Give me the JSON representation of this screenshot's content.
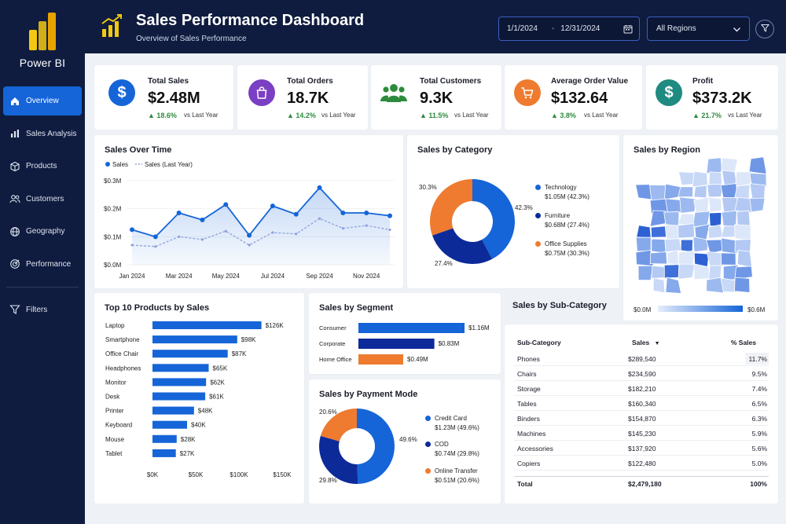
{
  "app": {
    "brand": "Power BI"
  },
  "sidebar": {
    "items": [
      {
        "label": "Overview",
        "icon": "home-icon",
        "active": true
      },
      {
        "label": "Sales Analysis",
        "icon": "bar-chart-icon"
      },
      {
        "label": "Products",
        "icon": "box-icon"
      },
      {
        "label": "Customers",
        "icon": "users-icon"
      },
      {
        "label": "Geography",
        "icon": "globe-icon"
      },
      {
        "label": "Performance",
        "icon": "target-icon"
      }
    ],
    "filters_label": "Filters"
  },
  "header": {
    "title": "Sales Performance Dashboard",
    "subtitle": "Overview of Sales Performance",
    "date_start": "1/1/2024",
    "date_separator": "-",
    "date_end": "12/31/2024",
    "region_selected": "All Regions"
  },
  "kpis": [
    {
      "label": "Total Sales",
      "value": "$2.48M",
      "change": "▲ 18.6%",
      "vs": "vs Last Year",
      "color": "#1565d8",
      "icon": "dollar-icon"
    },
    {
      "label": "Total Orders",
      "value": "18.7K",
      "change": "▲ 14.2%",
      "vs": "vs Last Year",
      "color": "#7b3fc4",
      "icon": "shopping-bag-icon"
    },
    {
      "label": "Total Customers",
      "value": "9.3K",
      "change": "▲ 11.5%",
      "vs": "vs Last Year",
      "color": "#2e8b3d",
      "icon": "users-icon"
    },
    {
      "label": "Average Order Value",
      "value": "$132.64",
      "change": "▲ 3.8%",
      "vs": "vs Last Year",
      "color": "#ee7b2f",
      "icon": "cart-icon"
    },
    {
      "label": "Profit",
      "value": "$373.2K",
      "change": "▲ 21.7%",
      "vs": "vs Last Year",
      "color": "#1f8a80",
      "icon": "dollar-icon"
    }
  ],
  "sales_over_time": {
    "title": "Sales Over Time",
    "legend_current": "Sales",
    "legend_last": "Sales (Last Year)"
  },
  "sales_by_category": {
    "title": "Sales by Category",
    "items": [
      {
        "name": "Technology",
        "value": "$1.05M (42.3%)",
        "pct_label": "42.3%",
        "color": "#1565d8"
      },
      {
        "name": "Furniture",
        "value": "$0.68M (27.4%)",
        "pct_label": "27.4%",
        "color": "#0d2a99"
      },
      {
        "name": "Office Supplies",
        "value": "$0.75M (30.3%)",
        "pct_label": "30.3%",
        "color": "#ee7b2f"
      }
    ]
  },
  "sales_by_region": {
    "title": "Sales by Region",
    "scale_min": "$0.0M",
    "scale_max": "$0.6M"
  },
  "top_products": {
    "title": "Top 10 Products by Sales"
  },
  "sales_by_segment": {
    "title": "Sales by Segment"
  },
  "sales_by_payment": {
    "title": "Sales by Payment Mode",
    "items": [
      {
        "name": "Credit Card",
        "value": "$1.23M (49.6%)",
        "pct_label": "49.6%",
        "color": "#1565d8"
      },
      {
        "name": "COD",
        "value": "$0.74M (29.8%)",
        "pct_label": "29.8%",
        "color": "#0d2a99"
      },
      {
        "name": "Online Transfer",
        "value": "$0.51M (20.6%)",
        "pct_label": "20.6%",
        "color": "#ee7b2f"
      }
    ]
  },
  "sub_category": {
    "title": "Sales by Sub-Category",
    "headers": {
      "name": "Sub-Category",
      "sales": "Sales",
      "pct": "% Sales"
    },
    "sort_icon": "▼",
    "rows": [
      {
        "name": "Phones",
        "sales": "$289,540",
        "pct": "11.7%"
      },
      {
        "name": "Chairs",
        "sales": "$234,590",
        "pct": "9.5%"
      },
      {
        "name": "Storage",
        "sales": "$182,210",
        "pct": "7.4%"
      },
      {
        "name": "Tables",
        "sales": "$160,340",
        "pct": "6.5%"
      },
      {
        "name": "Binders",
        "sales": "$154,870",
        "pct": "6.3%"
      },
      {
        "name": "Machines",
        "sales": "$145,230",
        "pct": "5.9%"
      },
      {
        "name": "Accessories",
        "sales": "$137,920",
        "pct": "5.6%"
      },
      {
        "name": "Copiers",
        "sales": "$122,480",
        "pct": "5.0%"
      }
    ],
    "total": {
      "name": "Total",
      "sales": "$2,479,180",
      "pct": "100%"
    }
  },
  "chart_data": [
    {
      "type": "line",
      "title": "Sales Over Time",
      "x": [
        "Jan 2024",
        "Feb 2024",
        "Mar 2024",
        "Apr 2024",
        "May 2024",
        "Jun 2024",
        "Jul 2024",
        "Aug 2024",
        "Sep 2024",
        "Oct 2024",
        "Nov 2024",
        "Dec 2024"
      ],
      "x_tick_labels": [
        "Jan 2024",
        "Mar 2024",
        "May 2024",
        "Jul 2024",
        "Sep 2024",
        "Nov 2024"
      ],
      "series": [
        {
          "name": "Sales",
          "values": [
            0.125,
            0.1,
            0.185,
            0.16,
            0.215,
            0.105,
            0.21,
            0.18,
            0.275,
            0.185,
            0.185,
            0.175
          ],
          "color": "#1565d8"
        },
        {
          "name": "Sales (Last Year)",
          "values": [
            0.07,
            0.065,
            0.1,
            0.09,
            0.12,
            0.07,
            0.115,
            0.11,
            0.165,
            0.13,
            0.14,
            0.125
          ],
          "color": "#8ea3dd"
        }
      ],
      "yticks": [
        "$0.0M",
        "$0.1M",
        "$0.2M",
        "$0.3M"
      ],
      "ylim": [
        0,
        0.3
      ]
    },
    {
      "type": "pie",
      "title": "Sales by Category",
      "categories": [
        "Technology",
        "Furniture",
        "Office Supplies"
      ],
      "values": [
        42.3,
        27.4,
        30.3
      ]
    },
    {
      "type": "bar",
      "title": "Top 10 Products by Sales",
      "categories": [
        "Laptop",
        "Smartphone",
        "Office Chair",
        "Headphones",
        "Monitor",
        "Desk",
        "Printer",
        "Keyboard",
        "Mouse",
        "Tablet"
      ],
      "values": [
        126,
        98,
        87,
        65,
        62,
        61,
        48,
        40,
        28,
        27
      ],
      "value_labels": [
        "$126K",
        "$98K",
        "$87K",
        "$65K",
        "$62K",
        "$61K",
        "$48K",
        "$40K",
        "$28K",
        "$27K"
      ],
      "xticks": [
        "$0K",
        "$50K",
        "$100K",
        "$150K"
      ],
      "xlim": [
        0,
        150
      ]
    },
    {
      "type": "bar",
      "title": "Sales by Segment",
      "categories": [
        "Consumer",
        "Corporate",
        "Home Office"
      ],
      "values": [
        1.16,
        0.83,
        0.49
      ],
      "value_labels": [
        "$1.16M",
        "$0.83M",
        "$0.49M"
      ],
      "colors": [
        "#1565d8",
        "#0d2a99",
        "#ee7b2f"
      ]
    },
    {
      "type": "pie",
      "title": "Sales by Payment Mode",
      "categories": [
        "Credit Card",
        "COD",
        "Online Transfer"
      ],
      "values": [
        49.6,
        29.8,
        20.6
      ]
    }
  ]
}
